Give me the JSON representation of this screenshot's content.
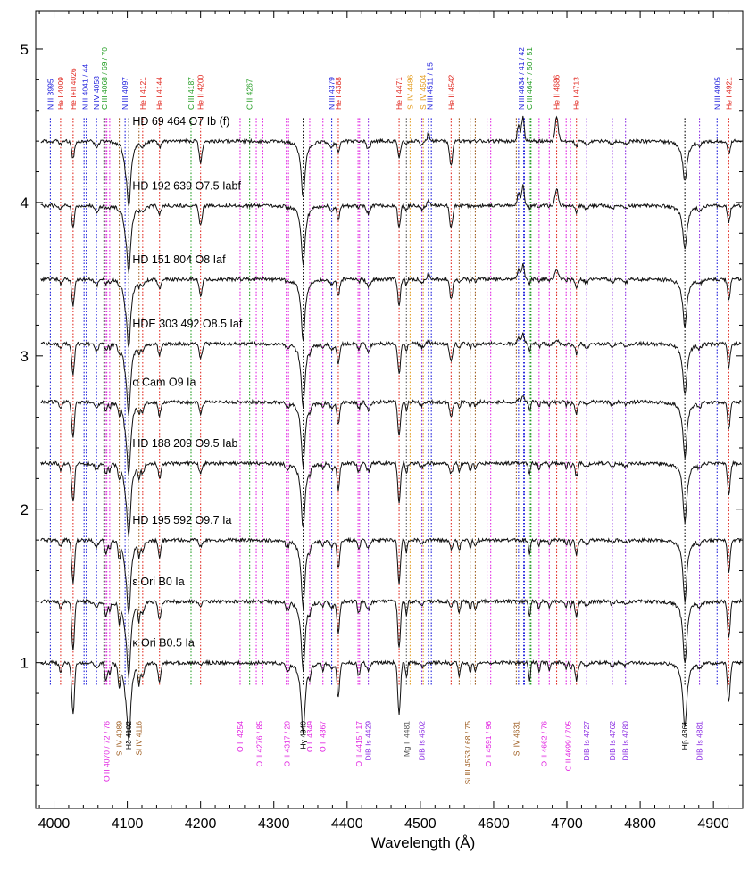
{
  "chart_data": {
    "type": "line",
    "title": "",
    "xlabel": "Wavelength (Å)",
    "ylabel": "",
    "xlim": [
      3975,
      4940
    ],
    "ylim": [
      0.05,
      5.25
    ],
    "xticks": [
      4000,
      4100,
      4200,
      4300,
      4400,
      4500,
      4600,
      4700,
      4800,
      4900
    ],
    "yticks": [
      1,
      2,
      3,
      4,
      5
    ],
    "grid": false,
    "legend": "none",
    "spectra": [
      {
        "name": "HD 69 464   O7 Ib (f)",
        "offset": 4.4
      },
      {
        "name": "HD 192 639   O7.5 Iabf",
        "offset": 3.98
      },
      {
        "name": "HD 151 804   O8 Iaf",
        "offset": 3.5
      },
      {
        "name": "HDE 303 492   O8.5 Iaf",
        "offset": 3.08
      },
      {
        "name": "α Cam   O9 Ia",
        "offset": 2.7
      },
      {
        "name": "HD 188 209   O9.5 Iab",
        "offset": 2.3
      },
      {
        "name": "HD 195 592   O9.7 Ia",
        "offset": 1.8
      },
      {
        "name": "ε Ori   B0 Ia",
        "offset": 1.4
      },
      {
        "name": "κ Ori   B0.5 Ia",
        "offset": 1.0
      }
    ],
    "top_lines": [
      {
        "label": "N II 3995",
        "wl": 3995,
        "color": "#1a1adb",
        "ls": [
          3995
        ]
      },
      {
        "label": "He I 4009",
        "wl": 4009,
        "color": "#e0241c",
        "ls": [
          4009
        ]
      },
      {
        "label": "He I+II 4026",
        "wl": 4026,
        "color": "#e0241c",
        "ls": [
          4026
        ]
      },
      {
        "label": "N II 4041 / 44",
        "wl": 4042.5,
        "color": "#1a1adb",
        "ls": [
          4041,
          4044
        ]
      },
      {
        "label": "N IV 4058",
        "wl": 4058,
        "color": "#1a1adb",
        "ls": [
          4058
        ]
      },
      {
        "label": "C III 4068 / 69 / 70",
        "wl": 4069,
        "color": "#1f9b1f",
        "ls": [
          4068,
          4069,
          4070
        ]
      },
      {
        "label": "N III 4097",
        "wl": 4097,
        "color": "#1a1adb",
        "ls": [
          4097
        ]
      },
      {
        "label": "He I 4121",
        "wl": 4121,
        "color": "#e0241c",
        "ls": [
          4121
        ]
      },
      {
        "label": "He I 4144",
        "wl": 4144,
        "color": "#e0241c",
        "ls": [
          4144
        ]
      },
      {
        "label": "C III 4187",
        "wl": 4187,
        "color": "#1f9b1f",
        "ls": [
          4187
        ]
      },
      {
        "label": "He II 4200",
        "wl": 4200,
        "color": "#e0241c",
        "ls": [
          4200
        ]
      },
      {
        "label": "C II 4267",
        "wl": 4267,
        "color": "#1f9b1f",
        "ls": [
          4267
        ]
      },
      {
        "label": "N III 4379",
        "wl": 4379,
        "color": "#1a1adb",
        "ls": [
          4379
        ]
      },
      {
        "label": "He I 4388",
        "wl": 4388,
        "color": "#e0241c",
        "ls": [
          4388
        ]
      },
      {
        "label": "He I 4471",
        "wl": 4471,
        "color": "#e0241c",
        "ls": [
          4471
        ]
      },
      {
        "label": "Si IV 4486",
        "wl": 4486,
        "color": "#e39a1a",
        "ls": [
          4486
        ]
      },
      {
        "label": "Si IV 4504",
        "wl": 4504,
        "color": "#e39a1a",
        "ls": [
          4504
        ]
      },
      {
        "label": "N III 4511 / 15",
        "wl": 4513,
        "color": "#1a1adb",
        "ls": [
          4511,
          4515
        ]
      },
      {
        "label": "He II 4542",
        "wl": 4542,
        "color": "#e0241c",
        "ls": [
          4542
        ]
      },
      {
        "label": "N III 4634 / 41 / 42",
        "wl": 4638,
        "color": "#1a1adb",
        "ls": [
          4634,
          4641,
          4642
        ]
      },
      {
        "label": "C III 4647 / 50 / 51",
        "wl": 4649,
        "color": "#1f9b1f",
        "ls": [
          4647,
          4650,
          4651
        ]
      },
      {
        "label": "He II 4686",
        "wl": 4686,
        "color": "#e0241c",
        "ls": [
          4686
        ]
      },
      {
        "label": "He I 4713",
        "wl": 4713,
        "color": "#e0241c",
        "ls": [
          4713
        ]
      },
      {
        "label": "N III 4905",
        "wl": 4905,
        "color": "#1a1adb",
        "ls": [
          4905
        ]
      },
      {
        "label": "He I 4921",
        "wl": 4921,
        "color": "#e0241c",
        "ls": [
          4921
        ]
      }
    ],
    "bottom_lines": [
      {
        "label": "O II 4070 / 72 / 76",
        "wl": 4072,
        "color": "#e01ee0",
        "ls": [
          4070,
          4072,
          4076
        ]
      },
      {
        "label": "Si IV 4089",
        "wl": 4089,
        "color": "#9c5a1c",
        "ls": [
          4089
        ]
      },
      {
        "label": "Hδ 4102",
        "wl": 4102,
        "color": "#000000",
        "ls": [
          4102
        ]
      },
      {
        "label": "Si IV 4116",
        "wl": 4116,
        "color": "#9c5a1c",
        "ls": [
          4116
        ]
      },
      {
        "label": "O II 4254",
        "wl": 4254,
        "color": "#e01ee0",
        "ls": [
          4254
        ]
      },
      {
        "label": "O II 4276 / 85",
        "wl": 4280,
        "color": "#e01ee0",
        "ls": [
          4276,
          4285
        ]
      },
      {
        "label": "O II 4317 / 20",
        "wl": 4318,
        "color": "#e01ee0",
        "ls": [
          4317,
          4320
        ]
      },
      {
        "label": "Hγ 4340",
        "wl": 4340,
        "color": "#000000",
        "ls": [
          4340
        ]
      },
      {
        "label": "O II 4349",
        "wl": 4349,
        "color": "#e01ee0",
        "ls": [
          4349
        ]
      },
      {
        "label": "O II 4367",
        "wl": 4367,
        "color": "#e01ee0",
        "ls": [
          4367
        ]
      },
      {
        "label": "O II 4415 / 17",
        "wl": 4416,
        "color": "#e01ee0",
        "ls": [
          4415,
          4417
        ]
      },
      {
        "label": "DIB Is 4429",
        "wl": 4429,
        "color": "#8a2be2",
        "ls": [
          4429
        ]
      },
      {
        "label": "Mg II 4481",
        "wl": 4481,
        "color": "#505050",
        "ls": [
          4481
        ]
      },
      {
        "label": "DIB Is 4502",
        "wl": 4502,
        "color": "#8a2be2",
        "ls": [
          4502
        ]
      },
      {
        "label": "Si III 4553 / 68 / 75",
        "wl": 4565,
        "color": "#9c5a1c",
        "ls": [
          4553,
          4568,
          4575
        ]
      },
      {
        "label": "O II 4591 / 96",
        "wl": 4593,
        "color": "#e01ee0",
        "ls": [
          4591,
          4596
        ]
      },
      {
        "label": "Si IV 4631",
        "wl": 4631,
        "color": "#9c5a1c",
        "ls": [
          4631
        ]
      },
      {
        "label": "O II 4662 / 76",
        "wl": 4669,
        "color": "#e01ee0",
        "ls": [
          4662,
          4676
        ]
      },
      {
        "label": "O II 4699 / 705",
        "wl": 4702,
        "color": "#e01ee0",
        "ls": [
          4699,
          4705
        ]
      },
      {
        "label": "DIB Is 4727",
        "wl": 4727,
        "color": "#8a2be2",
        "ls": [
          4727
        ]
      },
      {
        "label": "DIB Is 4762",
        "wl": 4762,
        "color": "#8a2be2",
        "ls": [
          4762
        ]
      },
      {
        "label": "DIB Is 4780",
        "wl": 4780,
        "color": "#8a2be2",
        "ls": [
          4780
        ]
      },
      {
        "label": "Hβ 4861",
        "wl": 4861,
        "color": "#000000",
        "ls": [
          4861
        ]
      },
      {
        "label": "DIB Is 4881",
        "wl": 4881,
        "color": "#8a2be2",
        "ls": [
          4881
        ]
      }
    ]
  }
}
